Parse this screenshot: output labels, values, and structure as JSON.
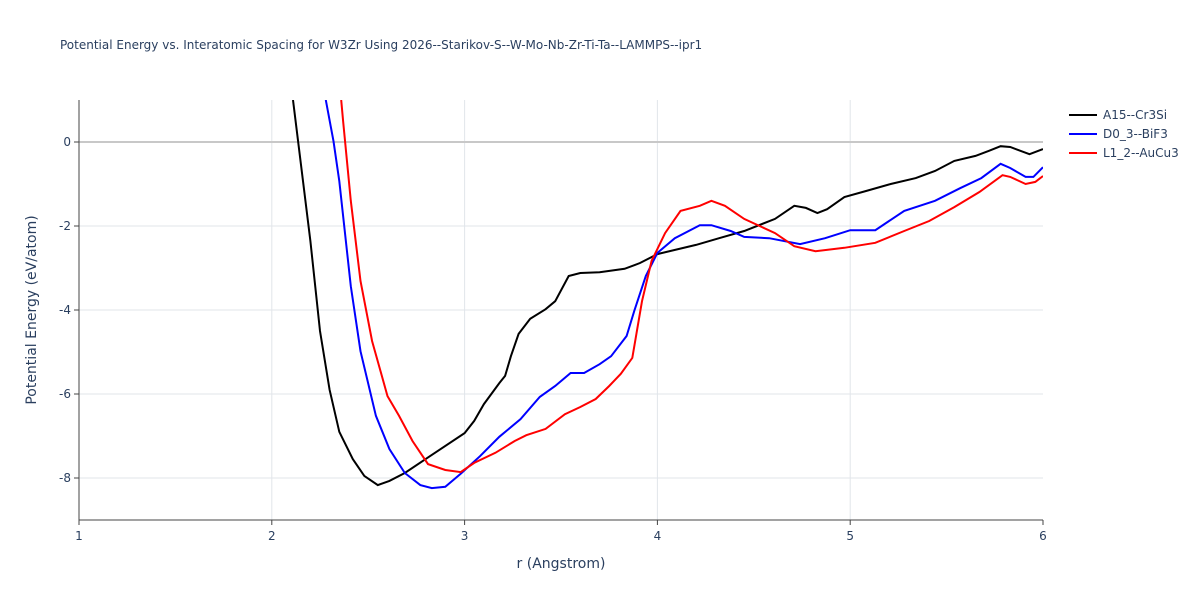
{
  "chart_data": {
    "type": "line",
    "title": "Potential Energy vs. Interatomic Spacing for W3Zr Using 2026--Starikov-S--W-Mo-Nb-Zr-Ti-Ta--LAMMPS--ipr1",
    "x_label": "r (Angstrom)",
    "y_label": "Potential Energy (eV/atom)",
    "xlim": [
      1,
      6
    ],
    "ylim": [
      -9,
      1
    ],
    "xticks": [
      1,
      2,
      3,
      4,
      5,
      6
    ],
    "yticks": [
      -8,
      -6,
      -4,
      -2,
      0
    ],
    "grid": true,
    "legend": "right",
    "series": [
      {
        "name": "A15--Cr3Si",
        "color": "#000000",
        "x": [
          2.11,
          2.2,
          2.25,
          2.3,
          2.35,
          2.42,
          2.48,
          2.55,
          2.61,
          2.69,
          2.82,
          3.0,
          3.05,
          3.1,
          3.18,
          3.21,
          3.24,
          3.28,
          3.34,
          3.42,
          3.47,
          3.54,
          3.6,
          3.7,
          3.83,
          3.91,
          4.0,
          4.2,
          4.32,
          4.45,
          4.61,
          4.71,
          4.77,
          4.83,
          4.88,
          4.97,
          5.08,
          5.21,
          5.34,
          5.44,
          5.54,
          5.65,
          5.72,
          5.78,
          5.83,
          5.93,
          6.0
        ],
        "values": [
          1.0,
          -2.36,
          -4.5,
          -5.9,
          -6.9,
          -7.55,
          -7.95,
          -8.17,
          -8.07,
          -7.88,
          -7.48,
          -6.93,
          -6.64,
          -6.24,
          -5.74,
          -5.57,
          -5.1,
          -4.57,
          -4.21,
          -3.98,
          -3.79,
          -3.19,
          -3.12,
          -3.1,
          -3.02,
          -2.88,
          -2.67,
          -2.45,
          -2.29,
          -2.12,
          -1.83,
          -1.52,
          -1.57,
          -1.69,
          -1.6,
          -1.31,
          -1.17,
          -1.0,
          -0.86,
          -0.69,
          -0.45,
          -0.33,
          -0.21,
          -0.1,
          -0.12,
          -0.29,
          -0.17
        ]
      },
      {
        "name": "D0_3--BiF3",
        "color": "#0000ff",
        "x": [
          2.28,
          2.32,
          2.35,
          2.41,
          2.46,
          2.54,
          2.61,
          2.69,
          2.77,
          2.83,
          2.9,
          2.98,
          3.08,
          3.18,
          3.29,
          3.39,
          3.47,
          3.55,
          3.62,
          3.7,
          3.76,
          3.84,
          3.88,
          3.94,
          4.0,
          4.09,
          4.22,
          4.28,
          4.38,
          4.45,
          4.58,
          4.74,
          4.87,
          5.0,
          5.13,
          5.28,
          5.44,
          5.57,
          5.68,
          5.78,
          5.83,
          5.91,
          5.95,
          6.0
        ],
        "values": [
          1.0,
          0.02,
          -0.93,
          -3.43,
          -4.98,
          -6.52,
          -7.31,
          -7.88,
          -8.17,
          -8.24,
          -8.21,
          -7.9,
          -7.48,
          -7.02,
          -6.6,
          -6.07,
          -5.81,
          -5.5,
          -5.5,
          -5.29,
          -5.1,
          -4.62,
          -4.02,
          -3.19,
          -2.64,
          -2.29,
          -1.98,
          -1.98,
          -2.12,
          -2.26,
          -2.29,
          -2.43,
          -2.29,
          -2.1,
          -2.1,
          -1.64,
          -1.4,
          -1.1,
          -0.86,
          -0.52,
          -0.62,
          -0.83,
          -0.83,
          -0.6
        ]
      },
      {
        "name": "L1_2--AuCu3",
        "color": "#ff0000",
        "x": [
          2.36,
          2.37,
          2.41,
          2.46,
          2.52,
          2.6,
          2.66,
          2.73,
          2.81,
          2.9,
          2.98,
          3.05,
          3.16,
          3.26,
          3.32,
          3.42,
          3.52,
          3.6,
          3.68,
          3.75,
          3.81,
          3.87,
          3.92,
          3.97,
          4.04,
          4.12,
          4.22,
          4.28,
          4.35,
          4.45,
          4.61,
          4.71,
          4.82,
          4.97,
          5.13,
          5.28,
          5.41,
          5.54,
          5.67,
          5.79,
          5.83,
          5.91,
          5.96,
          6.0
        ],
        "values": [
          1.0,
          0.5,
          -1.4,
          -3.31,
          -4.74,
          -6.05,
          -6.52,
          -7.12,
          -7.67,
          -7.81,
          -7.86,
          -7.64,
          -7.4,
          -7.12,
          -6.98,
          -6.83,
          -6.48,
          -6.31,
          -6.12,
          -5.81,
          -5.52,
          -5.14,
          -3.79,
          -2.83,
          -2.17,
          -1.64,
          -1.52,
          -1.4,
          -1.52,
          -1.83,
          -2.17,
          -2.48,
          -2.6,
          -2.52,
          -2.4,
          -2.12,
          -1.88,
          -1.55,
          -1.19,
          -0.79,
          -0.83,
          -1.0,
          -0.95,
          -0.81
        ]
      }
    ]
  }
}
